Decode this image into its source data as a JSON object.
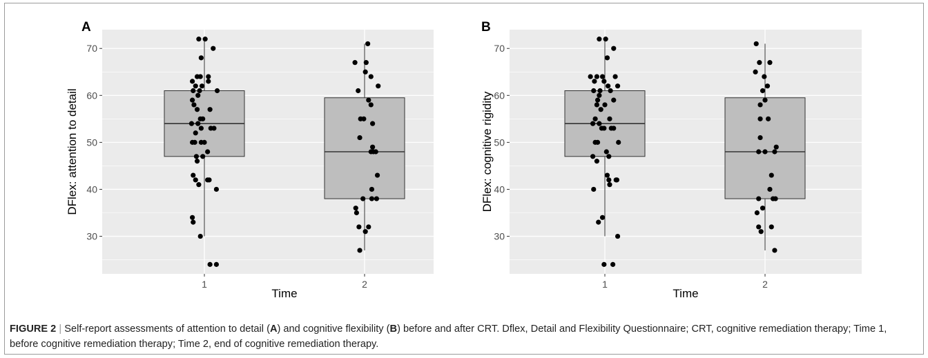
{
  "chart_data": [
    {
      "panel": "A",
      "type": "boxplot-jitter",
      "xlabel": "Time",
      "ylabel": "DFlex: attention to detail",
      "categories": [
        "1",
        "2"
      ],
      "ylim": [
        22,
        74
      ],
      "yticks": [
        30,
        40,
        50,
        60,
        70
      ],
      "grid": true,
      "boxes": [
        {
          "x": "1",
          "min": 30,
          "q1": 47,
          "median": 54,
          "q3": 61,
          "max": 72
        },
        {
          "x": "2",
          "min": 27,
          "q1": 38,
          "median": 48,
          "q3": 59.5,
          "max": 71
        }
      ],
      "points": [
        {
          "group": 1,
          "offset": -0.07,
          "y": 72
        },
        {
          "group": 1,
          "offset": 0.01,
          "y": 72
        },
        {
          "group": 1,
          "offset": 0.11,
          "y": 70
        },
        {
          "group": 1,
          "offset": -0.04,
          "y": 68
        },
        {
          "group": 1,
          "offset": -0.09,
          "y": 64
        },
        {
          "group": 1,
          "offset": -0.05,
          "y": 64
        },
        {
          "group": 1,
          "offset": 0.05,
          "y": 64
        },
        {
          "group": 1,
          "offset": -0.15,
          "y": 63
        },
        {
          "group": 1,
          "offset": 0.05,
          "y": 63
        },
        {
          "group": 1,
          "offset": -0.11,
          "y": 62
        },
        {
          "group": 1,
          "offset": -0.03,
          "y": 62
        },
        {
          "group": 1,
          "offset": -0.14,
          "y": 61
        },
        {
          "group": 1,
          "offset": -0.06,
          "y": 61
        },
        {
          "group": 1,
          "offset": 0.16,
          "y": 61
        },
        {
          "group": 1,
          "offset": -0.15,
          "y": 59
        },
        {
          "group": 1,
          "offset": -0.08,
          "y": 60
        },
        {
          "group": 1,
          "offset": -0.13,
          "y": 58
        },
        {
          "group": 1,
          "offset": -0.09,
          "y": 57
        },
        {
          "group": 1,
          "offset": 0.07,
          "y": 57
        },
        {
          "group": 1,
          "offset": -0.05,
          "y": 55
        },
        {
          "group": 1,
          "offset": -0.02,
          "y": 55
        },
        {
          "group": 1,
          "offset": -0.16,
          "y": 54
        },
        {
          "group": 1,
          "offset": -0.08,
          "y": 54
        },
        {
          "group": 1,
          "offset": -0.04,
          "y": 53
        },
        {
          "group": 1,
          "offset": 0.08,
          "y": 53
        },
        {
          "group": 1,
          "offset": 0.12,
          "y": 53
        },
        {
          "group": 1,
          "offset": -0.11,
          "y": 52
        },
        {
          "group": 1,
          "offset": -0.15,
          "y": 50
        },
        {
          "group": 1,
          "offset": -0.12,
          "y": 50
        },
        {
          "group": 1,
          "offset": -0.04,
          "y": 50
        },
        {
          "group": 1,
          "offset": 0.0,
          "y": 50
        },
        {
          "group": 1,
          "offset": 0.04,
          "y": 48
        },
        {
          "group": 1,
          "offset": -0.1,
          "y": 47
        },
        {
          "group": 1,
          "offset": -0.02,
          "y": 47
        },
        {
          "group": 1,
          "offset": -0.09,
          "y": 46
        },
        {
          "group": 1,
          "offset": -0.14,
          "y": 43
        },
        {
          "group": 1,
          "offset": -0.11,
          "y": 42
        },
        {
          "group": 1,
          "offset": 0.04,
          "y": 42
        },
        {
          "group": 1,
          "offset": 0.06,
          "y": 42
        },
        {
          "group": 1,
          "offset": -0.07,
          "y": 41
        },
        {
          "group": 1,
          "offset": 0.15,
          "y": 40
        },
        {
          "group": 1,
          "offset": -0.15,
          "y": 34
        },
        {
          "group": 1,
          "offset": -0.14,
          "y": 33
        },
        {
          "group": 1,
          "offset": -0.05,
          "y": 30
        },
        {
          "group": 1,
          "offset": 0.07,
          "y": 24
        },
        {
          "group": 1,
          "offset": 0.15,
          "y": 24
        },
        {
          "group": 2,
          "offset": -0.12,
          "y": 67
        },
        {
          "group": 2,
          "offset": 0.02,
          "y": 67
        },
        {
          "group": 2,
          "offset": 0.04,
          "y": 71
        },
        {
          "group": 2,
          "offset": 0.01,
          "y": 65
        },
        {
          "group": 2,
          "offset": 0.08,
          "y": 64
        },
        {
          "group": 2,
          "offset": 0.17,
          "y": 62
        },
        {
          "group": 2,
          "offset": -0.08,
          "y": 61
        },
        {
          "group": 2,
          "offset": 0.05,
          "y": 59
        },
        {
          "group": 2,
          "offset": 0.08,
          "y": 58
        },
        {
          "group": 2,
          "offset": -0.05,
          "y": 55
        },
        {
          "group": 2,
          "offset": 0.1,
          "y": 54
        },
        {
          "group": 2,
          "offset": -0.01,
          "y": 55
        },
        {
          "group": 2,
          "offset": -0.06,
          "y": 51
        },
        {
          "group": 2,
          "offset": 0.1,
          "y": 49
        },
        {
          "group": 2,
          "offset": 0.08,
          "y": 48
        },
        {
          "group": 2,
          "offset": 0.11,
          "y": 48
        },
        {
          "group": 2,
          "offset": 0.14,
          "y": 48
        },
        {
          "group": 2,
          "offset": 0.16,
          "y": 43
        },
        {
          "group": 2,
          "offset": 0.09,
          "y": 40
        },
        {
          "group": 2,
          "offset": 0.09,
          "y": 38
        },
        {
          "group": 2,
          "offset": 0.15,
          "y": 38
        },
        {
          "group": 2,
          "offset": -0.02,
          "y": 38
        },
        {
          "group": 2,
          "offset": -0.11,
          "y": 36
        },
        {
          "group": 2,
          "offset": -0.1,
          "y": 35
        },
        {
          "group": 2,
          "offset": -0.07,
          "y": 32
        },
        {
          "group": 2,
          "offset": 0.05,
          "y": 32
        },
        {
          "group": 2,
          "offset": 0.01,
          "y": 31
        },
        {
          "group": 2,
          "offset": -0.06,
          "y": 27
        }
      ]
    },
    {
      "panel": "B",
      "type": "boxplot-jitter",
      "xlabel": "Time",
      "ylabel": "DFlex: cognitive rigidity",
      "categories": [
        "1",
        "2"
      ],
      "ylim": [
        22,
        74
      ],
      "yticks": [
        30,
        40,
        50,
        60,
        70
      ],
      "grid": true,
      "boxes": [
        {
          "x": "1",
          "min": 30,
          "q1": 47,
          "median": 54,
          "q3": 61,
          "max": 72
        },
        {
          "x": "2",
          "min": 27,
          "q1": 38,
          "median": 48,
          "q3": 59.5,
          "max": 71
        }
      ],
      "points": [
        {
          "group": 1,
          "offset": -0.07,
          "y": 72
        },
        {
          "group": 1,
          "offset": 0.01,
          "y": 72
        },
        {
          "group": 1,
          "offset": 0.11,
          "y": 70
        },
        {
          "group": 1,
          "offset": 0.03,
          "y": 68
        },
        {
          "group": 1,
          "offset": -0.1,
          "y": 64
        },
        {
          "group": 1,
          "offset": -0.18,
          "y": 64
        },
        {
          "group": 1,
          "offset": -0.03,
          "y": 64
        },
        {
          "group": 1,
          "offset": 0.13,
          "y": 64
        },
        {
          "group": 1,
          "offset": -0.13,
          "y": 63
        },
        {
          "group": 1,
          "offset": -0.01,
          "y": 63
        },
        {
          "group": 1,
          "offset": 0.04,
          "y": 62
        },
        {
          "group": 1,
          "offset": 0.16,
          "y": 62
        },
        {
          "group": 1,
          "offset": -0.14,
          "y": 61
        },
        {
          "group": 1,
          "offset": -0.06,
          "y": 61
        },
        {
          "group": 1,
          "offset": 0.07,
          "y": 61
        },
        {
          "group": 1,
          "offset": -0.07,
          "y": 60
        },
        {
          "group": 1,
          "offset": -0.09,
          "y": 59
        },
        {
          "group": 1,
          "offset": 0.11,
          "y": 59
        },
        {
          "group": 1,
          "offset": -0.1,
          "y": 58
        },
        {
          "group": 1,
          "offset": 0.0,
          "y": 58
        },
        {
          "group": 1,
          "offset": -0.05,
          "y": 57
        },
        {
          "group": 1,
          "offset": -0.15,
          "y": 54
        },
        {
          "group": 1,
          "offset": -0.07,
          "y": 54
        },
        {
          "group": 1,
          "offset": -0.04,
          "y": 53
        },
        {
          "group": 1,
          "offset": -0.01,
          "y": 53
        },
        {
          "group": 1,
          "offset": 0.08,
          "y": 53
        },
        {
          "group": 1,
          "offset": 0.11,
          "y": 53
        },
        {
          "group": 1,
          "offset": -0.12,
          "y": 55
        },
        {
          "group": 1,
          "offset": 0.06,
          "y": 55
        },
        {
          "group": 1,
          "offset": -0.09,
          "y": 50
        },
        {
          "group": 1,
          "offset": -0.12,
          "y": 50
        },
        {
          "group": 1,
          "offset": 0.02,
          "y": 48
        },
        {
          "group": 1,
          "offset": 0.17,
          "y": 50
        },
        {
          "group": 1,
          "offset": -0.15,
          "y": 47
        },
        {
          "group": 1,
          "offset": 0.05,
          "y": 47
        },
        {
          "group": 1,
          "offset": -0.1,
          "y": 46
        },
        {
          "group": 1,
          "offset": 0.03,
          "y": 43
        },
        {
          "group": 1,
          "offset": 0.05,
          "y": 42
        },
        {
          "group": 1,
          "offset": 0.14,
          "y": 42
        },
        {
          "group": 1,
          "offset": 0.15,
          "y": 42
        },
        {
          "group": 1,
          "offset": 0.06,
          "y": 41
        },
        {
          "group": 1,
          "offset": -0.14,
          "y": 40
        },
        {
          "group": 1,
          "offset": -0.03,
          "y": 34
        },
        {
          "group": 1,
          "offset": -0.08,
          "y": 33
        },
        {
          "group": 1,
          "offset": 0.16,
          "y": 30
        },
        {
          "group": 1,
          "offset": -0.01,
          "y": 24
        },
        {
          "group": 1,
          "offset": 0.1,
          "y": 24
        },
        {
          "group": 2,
          "offset": -0.11,
          "y": 71
        },
        {
          "group": 2,
          "offset": -0.07,
          "y": 67
        },
        {
          "group": 2,
          "offset": 0.06,
          "y": 67
        },
        {
          "group": 2,
          "offset": -0.12,
          "y": 65
        },
        {
          "group": 2,
          "offset": -0.01,
          "y": 64
        },
        {
          "group": 2,
          "offset": 0.03,
          "y": 62
        },
        {
          "group": 2,
          "offset": -0.03,
          "y": 61
        },
        {
          "group": 2,
          "offset": -0.06,
          "y": 58
        },
        {
          "group": 2,
          "offset": 0.0,
          "y": 59
        },
        {
          "group": 2,
          "offset": -0.06,
          "y": 55
        },
        {
          "group": 2,
          "offset": 0.04,
          "y": 55
        },
        {
          "group": 2,
          "offset": -0.06,
          "y": 51
        },
        {
          "group": 2,
          "offset": -0.08,
          "y": 48
        },
        {
          "group": 2,
          "offset": 0.0,
          "y": 48
        },
        {
          "group": 2,
          "offset": 0.12,
          "y": 48
        },
        {
          "group": 2,
          "offset": 0.14,
          "y": 49
        },
        {
          "group": 2,
          "offset": 0.08,
          "y": 43
        },
        {
          "group": 2,
          "offset": 0.06,
          "y": 40
        },
        {
          "group": 2,
          "offset": -0.08,
          "y": 38
        },
        {
          "group": 2,
          "offset": 0.1,
          "y": 38
        },
        {
          "group": 2,
          "offset": 0.13,
          "y": 38
        },
        {
          "group": 2,
          "offset": -0.03,
          "y": 36
        },
        {
          "group": 2,
          "offset": -0.1,
          "y": 35
        },
        {
          "group": 2,
          "offset": -0.08,
          "y": 32
        },
        {
          "group": 2,
          "offset": 0.08,
          "y": 32
        },
        {
          "group": 2,
          "offset": -0.05,
          "y": 31
        },
        {
          "group": 2,
          "offset": 0.12,
          "y": 27
        }
      ]
    }
  ],
  "caption": {
    "figure_label": "FIGURE 2",
    "separator": "|",
    "text_1": "Self-report assessments of attention to detail (",
    "bold_a": "A",
    "text_2": ") and cognitive flexibility (",
    "bold_b": "B",
    "text_3": ") before and after CRT. Dflex, Detail and Flexibility Questionnaire; CRT, cognitive remediation therapy; Time 1, before cognitive remediation therapy; Time 2, end of cognitive remediation therapy."
  },
  "colors": {
    "panel_background": "#ebebeb",
    "gridline": "#ffffff",
    "box_fill": "#bebebe",
    "box_stroke": "#333333",
    "point": "#000000"
  }
}
